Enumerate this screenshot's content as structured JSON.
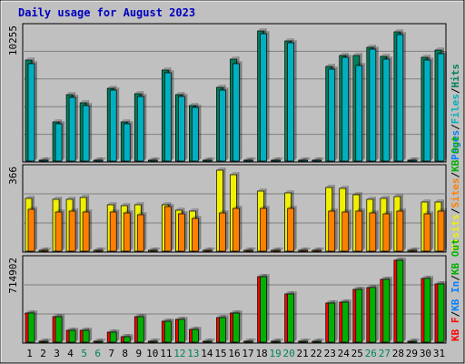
{
  "title": "Daily usage for August 2023",
  "colors": {
    "background": "#c0c0c0",
    "title": "#0000c0",
    "hits": "#00805c",
    "files": "#00b0c0",
    "pages": "#0080ff",
    "visits": "#f0f000",
    "sites": "#ff8000",
    "kb_in": "#0080ff",
    "kb_out": "#00b000",
    "kb_f": "#ff0000",
    "weekend_label": "#00805c",
    "weekday_label": "#000000"
  },
  "chart_data": [
    {
      "type": "bar",
      "panel": "hits-files",
      "y_max_label": "10255",
      "legend": [
        "Pages",
        "Files",
        "Hits"
      ],
      "ylim": [
        0,
        10255
      ],
      "categories": [
        "1",
        "2",
        "3",
        "4",
        "5",
        "6",
        "7",
        "8",
        "9",
        "10",
        "11",
        "12",
        "13",
        "14",
        "15",
        "16",
        "17",
        "18",
        "19",
        "20",
        "21",
        "22",
        "23",
        "24",
        "25",
        "26",
        "27",
        "28",
        "29",
        "30",
        "31"
      ],
      "series": [
        {
          "name": "Hits",
          "values": [
            7800,
            0,
            3000,
            5100,
            4500,
            0,
            5600,
            3000,
            5200,
            0,
            7000,
            5100,
            4300,
            0,
            5700,
            7900,
            0,
            10020,
            0,
            9300,
            0,
            0,
            7300,
            8150,
            8150,
            8800,
            8100,
            10000,
            0,
            8000,
            8550
          ]
        },
        {
          "name": "Files",
          "values": [
            7550,
            0,
            2900,
            4900,
            4300,
            0,
            5450,
            2900,
            5000,
            0,
            6800,
            5000,
            4150,
            0,
            5500,
            7550,
            0,
            9800,
            0,
            9100,
            0,
            0,
            7100,
            8000,
            7400,
            8650,
            7850,
            9750,
            0,
            7800,
            8300
          ]
        }
      ]
    },
    {
      "type": "bar",
      "panel": "visits-sites",
      "y_max_label": "366",
      "legend": [
        "Visits",
        "Sites",
        "KB Out"
      ],
      "ylim": [
        0,
        366
      ],
      "categories": [
        "1",
        "2",
        "3",
        "4",
        "5",
        "6",
        "7",
        "8",
        "9",
        "10",
        "11",
        "12",
        "13",
        "14",
        "15",
        "16",
        "17",
        "18",
        "19",
        "20",
        "21",
        "22",
        "23",
        "24",
        "25",
        "26",
        "27",
        "28",
        "29",
        "30",
        "31"
      ],
      "series": [
        {
          "name": "Visits",
          "values": [
            236,
            0,
            232,
            230,
            240,
            0,
            207,
            205,
            206,
            0,
            208,
            182,
            180,
            0,
            362,
            340,
            0,
            268,
            0,
            260,
            0,
            0,
            283,
            282,
            251,
            232,
            236,
            243,
            0,
            220,
            220
          ]
        },
        {
          "name": "Sites",
          "values": [
            187,
            0,
            173,
            180,
            175,
            0,
            173,
            170,
            163,
            0,
            198,
            165,
            148,
            0,
            170,
            193,
            0,
            190,
            0,
            190,
            0,
            0,
            180,
            174,
            178,
            171,
            165,
            180,
            0,
            165,
            180
          ]
        }
      ]
    },
    {
      "type": "bar",
      "panel": "kbytes",
      "y_max_label": "714902",
      "legend": [
        "KB F",
        "KB In",
        "KB Out"
      ],
      "ylim": [
        0,
        714902
      ],
      "categories": [
        "1",
        "2",
        "3",
        "4",
        "5",
        "6",
        "7",
        "8",
        "9",
        "10",
        "11",
        "12",
        "13",
        "14",
        "15",
        "16",
        "17",
        "18",
        "19",
        "20",
        "21",
        "22",
        "23",
        "24",
        "25",
        "26",
        "27",
        "28",
        "29",
        "30",
        "31"
      ],
      "series": [
        {
          "name": "KB Out",
          "values": [
            251000,
            0,
            225000,
            100000,
            105000,
            0,
            85000,
            45000,
            225000,
            0,
            180000,
            200000,
            115000,
            0,
            218000,
            251000,
            0,
            575000,
            0,
            420000,
            0,
            0,
            340000,
            350000,
            460000,
            478000,
            545000,
            714000,
            0,
            560000,
            505000
          ]
        }
      ]
    }
  ],
  "weekend_days": [
    "5",
    "6",
    "12",
    "13",
    "19",
    "20",
    "26",
    "27"
  ]
}
